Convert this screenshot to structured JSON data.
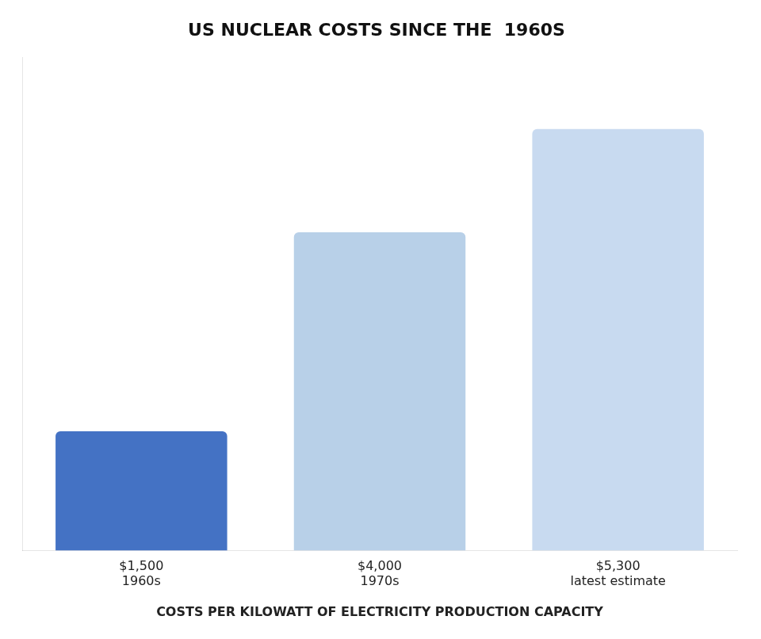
{
  "chart_data": {
    "type": "bar",
    "title": "US NUCLEAR COSTS SINCE THE  1960S",
    "categories": [
      "$1,500\n1960s",
      "$4,000\n1970s",
      "$5,300\nlatest estimate"
    ],
    "values": [
      1500,
      4000,
      5300
    ],
    "colors": [
      "#4472c4",
      "#b8d0e8",
      "#c8daf0"
    ],
    "xlabel": "COSTS PER KILOWATT OF ELECTRICITY PRODUCTION CAPACITY",
    "ylim": [
      0,
      6200
    ],
    "grid": false,
    "tick_labels": "x"
  }
}
